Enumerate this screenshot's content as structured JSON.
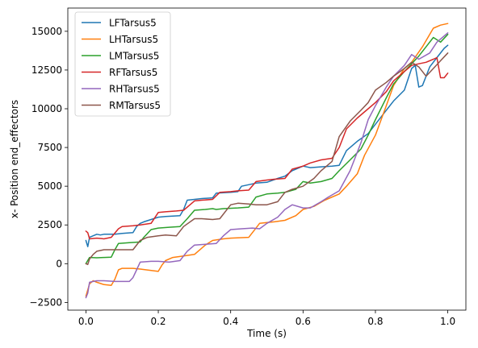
{
  "chart_data": {
    "type": "line",
    "title": "",
    "xlabel": "Time (s)",
    "ylabel": "x- Position end_effectors",
    "xlim": [
      -0.05,
      1.05
    ],
    "ylim": [
      -3000,
      16500
    ],
    "xticks": [
      "0.0",
      "0.2",
      "0.4",
      "0.6",
      "0.8",
      "1.0"
    ],
    "xtick_values": [
      0,
      0.2,
      0.4,
      0.6,
      0.8,
      1.0
    ],
    "yticks": [
      "−2500",
      "0",
      "2500",
      "5000",
      "7500",
      "10000",
      "12500",
      "15000"
    ],
    "ytick_values": [
      -2500,
      0,
      2500,
      5000,
      7500,
      10000,
      12500,
      15000
    ],
    "grid": false,
    "legend_position": "top-left",
    "series": [
      {
        "name": "LFTarsus5",
        "color": "#1f77b4",
        "x": [
          0.0,
          0.005,
          0.01,
          0.02,
          0.03,
          0.04,
          0.05,
          0.08,
          0.1,
          0.13,
          0.14,
          0.15,
          0.16,
          0.2,
          0.22,
          0.26,
          0.27,
          0.28,
          0.3,
          0.32,
          0.35,
          0.36,
          0.4,
          0.42,
          0.43,
          0.46,
          0.47,
          0.5,
          0.53,
          0.55,
          0.57,
          0.6,
          0.62,
          0.65,
          0.68,
          0.7,
          0.72,
          0.75,
          0.78,
          0.8,
          0.82,
          0.85,
          0.88,
          0.9,
          0.91,
          0.92,
          0.93,
          0.95,
          0.97,
          0.99,
          1.0
        ],
        "y": [
          1500,
          1100,
          1700,
          1800,
          1900,
          1850,
          1900,
          1900,
          1950,
          2000,
          2400,
          2600,
          2700,
          3000,
          3050,
          3100,
          3500,
          4100,
          4150,
          4200,
          4250,
          4550,
          4600,
          4650,
          5000,
          5150,
          5200,
          5250,
          5500,
          5650,
          6000,
          6300,
          6200,
          6250,
          6300,
          6350,
          7300,
          7900,
          8400,
          9000,
          9600,
          10500,
          11200,
          12600,
          12800,
          11400,
          11500,
          12700,
          13300,
          13900,
          14100
        ]
      },
      {
        "name": "LHTarsus5",
        "color": "#ff7f0e",
        "x": [
          0.0,
          0.01,
          0.02,
          0.03,
          0.05,
          0.07,
          0.08,
          0.09,
          0.1,
          0.13,
          0.15,
          0.2,
          0.21,
          0.22,
          0.24,
          0.27,
          0.3,
          0.33,
          0.35,
          0.38,
          0.4,
          0.45,
          0.47,
          0.48,
          0.5,
          0.52,
          0.55,
          0.58,
          0.6,
          0.63,
          0.66,
          0.7,
          0.72,
          0.75,
          0.77,
          0.8,
          0.83,
          0.85,
          0.88,
          0.9,
          0.93,
          0.96,
          0.98,
          1.0
        ],
        "y": [
          -2100,
          -1300,
          -1100,
          -1200,
          -1350,
          -1400,
          -1000,
          -400,
          -300,
          -300,
          -350,
          -500,
          -100,
          200,
          400,
          500,
          600,
          1200,
          1500,
          1600,
          1650,
          1700,
          2300,
          2600,
          2650,
          2700,
          2800,
          3100,
          3500,
          3700,
          4100,
          4500,
          5000,
          5800,
          7000,
          8300,
          10200,
          11500,
          12600,
          13000,
          14000,
          15200,
          15400,
          15500
        ]
      },
      {
        "name": "LMTarsus5",
        "color": "#2ca02c",
        "x": [
          0.0,
          0.01,
          0.03,
          0.05,
          0.07,
          0.08,
          0.09,
          0.12,
          0.15,
          0.16,
          0.18,
          0.2,
          0.23,
          0.26,
          0.28,
          0.3,
          0.33,
          0.35,
          0.36,
          0.38,
          0.42,
          0.45,
          0.47,
          0.5,
          0.53,
          0.55,
          0.58,
          0.6,
          0.62,
          0.65,
          0.68,
          0.7,
          0.73,
          0.76,
          0.78,
          0.8,
          0.83,
          0.85,
          0.88,
          0.9,
          0.92,
          0.94,
          0.96,
          0.98,
          1.0
        ],
        "y": [
          0,
          400,
          380,
          400,
          420,
          900,
          1300,
          1350,
          1400,
          1700,
          2200,
          2300,
          2350,
          2400,
          2900,
          3450,
          3500,
          3550,
          3500,
          3550,
          3600,
          3650,
          4300,
          4500,
          4550,
          4600,
          4800,
          5300,
          5200,
          5300,
          5500,
          6000,
          6700,
          7400,
          8300,
          9300,
          10700,
          11600,
          12400,
          12900,
          13400,
          14000,
          14600,
          14300,
          14800
        ]
      },
      {
        "name": "RFTarsus5",
        "color": "#d62728",
        "x": [
          0.0,
          0.005,
          0.01,
          0.03,
          0.05,
          0.07,
          0.09,
          0.1,
          0.13,
          0.15,
          0.18,
          0.2,
          0.22,
          0.25,
          0.27,
          0.3,
          0.32,
          0.35,
          0.37,
          0.4,
          0.42,
          0.45,
          0.47,
          0.5,
          0.52,
          0.55,
          0.57,
          0.6,
          0.62,
          0.65,
          0.68,
          0.7,
          0.72,
          0.75,
          0.78,
          0.8,
          0.83,
          0.85,
          0.88,
          0.9,
          0.92,
          0.94,
          0.96,
          0.97,
          0.98,
          0.99,
          1.0
        ],
        "y": [
          2100,
          2000,
          1600,
          1650,
          1600,
          1700,
          2250,
          2400,
          2450,
          2500,
          2600,
          3300,
          3350,
          3400,
          3450,
          4050,
          4100,
          4150,
          4600,
          4650,
          4700,
          4750,
          5300,
          5400,
          5450,
          5500,
          6100,
          6300,
          6500,
          6700,
          6800,
          7500,
          8700,
          9400,
          10000,
          10400,
          11100,
          11800,
          12400,
          12800,
          12900,
          13000,
          13200,
          13300,
          12000,
          12000,
          12300
        ]
      },
      {
        "name": "RHTarsus5",
        "color": "#9467bd",
        "x": [
          0.0,
          0.005,
          0.01,
          0.02,
          0.03,
          0.05,
          0.08,
          0.1,
          0.12,
          0.13,
          0.14,
          0.15,
          0.18,
          0.2,
          0.23,
          0.26,
          0.28,
          0.3,
          0.33,
          0.36,
          0.38,
          0.4,
          0.43,
          0.46,
          0.48,
          0.5,
          0.53,
          0.55,
          0.57,
          0.6,
          0.62,
          0.65,
          0.67,
          0.7,
          0.73,
          0.76,
          0.78,
          0.8,
          0.83,
          0.85,
          0.88,
          0.9,
          0.92,
          0.95,
          0.97,
          1.0
        ],
        "y": [
          -2200,
          -1900,
          -1200,
          -1150,
          -1100,
          -1100,
          -1150,
          -1150,
          -1150,
          -900,
          -400,
          100,
          150,
          150,
          100,
          200,
          800,
          1200,
          1250,
          1300,
          1800,
          2200,
          2250,
          2300,
          2250,
          2600,
          3000,
          3500,
          3800,
          3600,
          3600,
          4000,
          4300,
          4700,
          6000,
          7800,
          9300,
          10200,
          11400,
          12100,
          12800,
          13500,
          13200,
          13600,
          14300,
          14900
        ]
      },
      {
        "name": "RMTarsus5",
        "color": "#8c564b",
        "x": [
          0.0,
          0.005,
          0.01,
          0.02,
          0.03,
          0.05,
          0.07,
          0.1,
          0.12,
          0.13,
          0.15,
          0.17,
          0.2,
          0.22,
          0.25,
          0.27,
          0.3,
          0.32,
          0.35,
          0.37,
          0.4,
          0.42,
          0.45,
          0.47,
          0.5,
          0.53,
          0.55,
          0.57,
          0.6,
          0.63,
          0.65,
          0.68,
          0.7,
          0.73,
          0.76,
          0.78,
          0.8,
          0.83,
          0.85,
          0.88,
          0.9,
          0.92,
          0.94,
          0.96,
          0.98,
          1.0
        ],
        "y": [
          0,
          -50,
          300,
          600,
          800,
          900,
          900,
          900,
          900,
          900,
          1500,
          1700,
          1800,
          1850,
          1800,
          2400,
          2900,
          2900,
          2850,
          2900,
          3800,
          3900,
          3850,
          3800,
          3800,
          4000,
          4600,
          4800,
          5000,
          5500,
          6000,
          6600,
          8200,
          9200,
          9900,
          10400,
          11200,
          11700,
          12100,
          12600,
          13000,
          12700,
          12100,
          12600,
          13100,
          13600
        ]
      }
    ]
  }
}
